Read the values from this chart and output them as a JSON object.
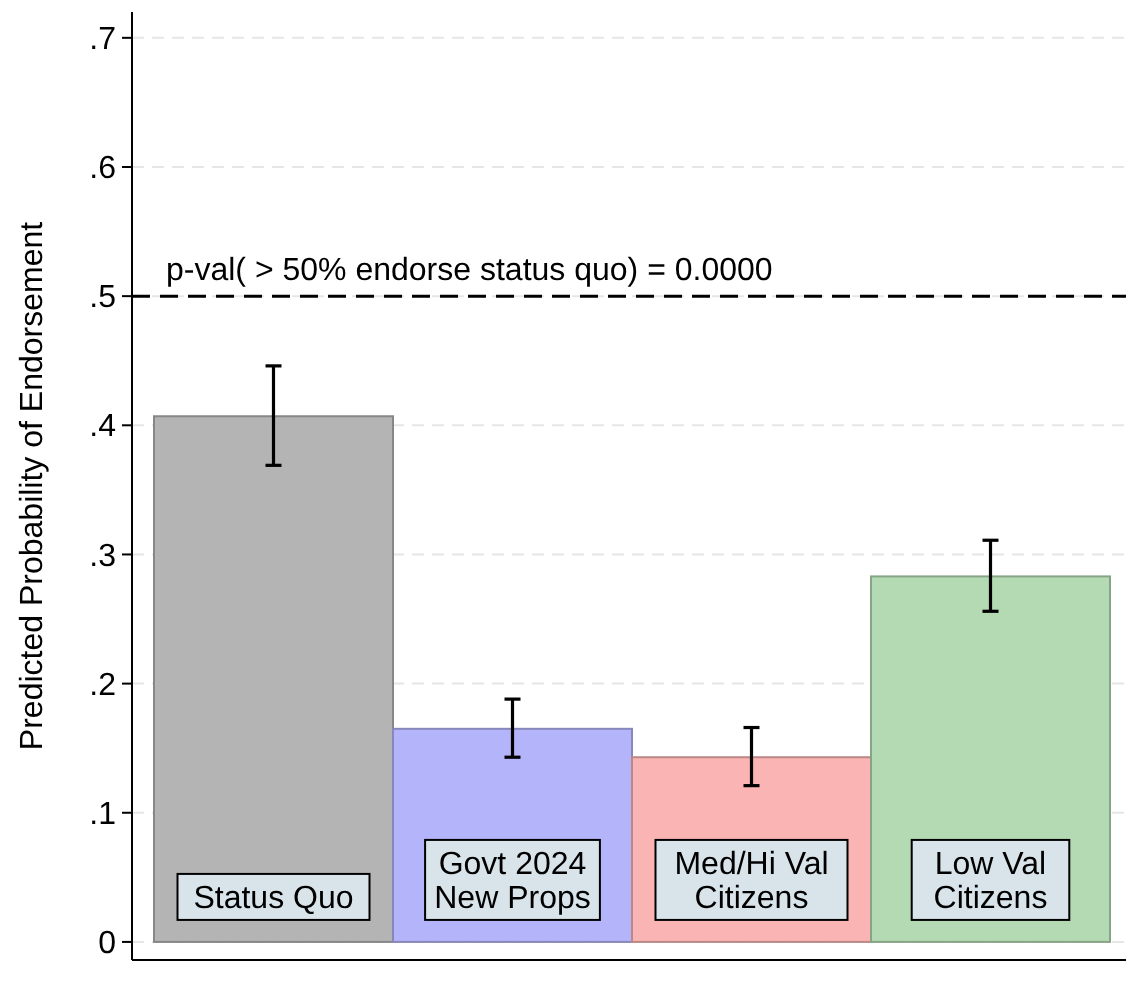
{
  "chart_data": {
    "type": "bar",
    "ylabel": "Predicted Probability of Endorsement",
    "categories": [
      "Status Quo",
      "Govt 2024\nNew Props",
      "Med/Hi Val\nCitizens",
      "Low Val\nCitizens"
    ],
    "values": [
      0.407,
      0.165,
      0.143,
      0.283
    ],
    "errors": [
      [
        0.369,
        0.446
      ],
      [
        0.143,
        0.188
      ],
      [
        0.121,
        0.166
      ],
      [
        0.256,
        0.311
      ]
    ],
    "colors": [
      "#b4b4b4",
      "#b4b4fa",
      "#fab4b4",
      "#b4dab4"
    ],
    "ylim": [
      -0.014,
      0.72
    ],
    "yticks": [
      {
        "value": 0,
        "label": "0"
      },
      {
        "value": 0.1,
        "label": ".1"
      },
      {
        "value": 0.2,
        "label": ".2"
      },
      {
        "value": 0.3,
        "label": ".3"
      },
      {
        "value": 0.4,
        "label": ".4"
      },
      {
        "value": 0.5,
        "label": ".5"
      },
      {
        "value": 0.6,
        "label": ".6"
      },
      {
        "value": 0.7,
        "label": ".7"
      }
    ],
    "grid": "y",
    "ref_lines": [
      {
        "axis": "y",
        "value": 0.5,
        "label": "p-val( > 50% endorse status quo) = 0.0000",
        "line_style": "dashed",
        "color": "#000000"
      }
    ]
  }
}
